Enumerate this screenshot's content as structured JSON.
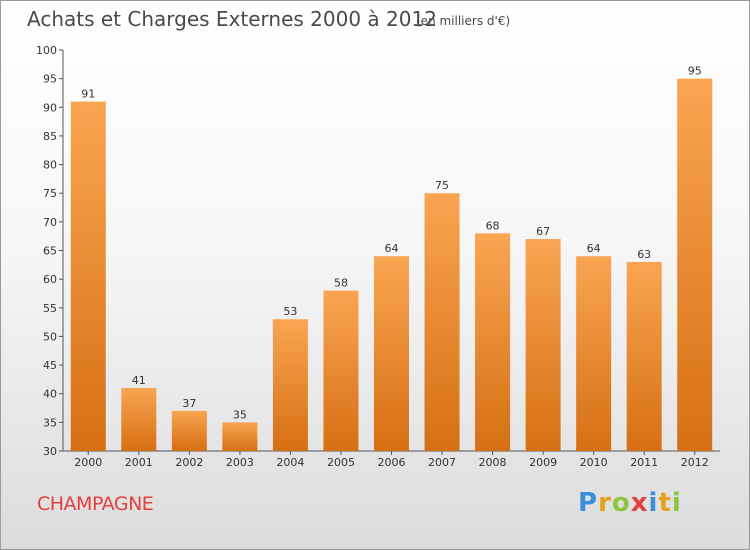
{
  "chart_data": {
    "type": "bar",
    "title": "Achats et Charges Externes 2000 à 2012",
    "subtitle": "(en milliers d'€)",
    "categories": [
      "2000",
      "2001",
      "2002",
      "2003",
      "2004",
      "2005",
      "2006",
      "2007",
      "2008",
      "2009",
      "2010",
      "2011",
      "2012"
    ],
    "values": [
      91,
      41,
      37,
      35,
      53,
      58,
      64,
      75,
      68,
      67,
      64,
      63,
      95
    ],
    "ylim": [
      30,
      100
    ],
    "yticks": [
      30,
      35,
      40,
      45,
      50,
      55,
      60,
      65,
      70,
      75,
      80,
      85,
      90,
      95,
      100
    ],
    "xlabel": "",
    "ylabel": "",
    "grid": false,
    "bar_color_top": "#f9a552",
    "bar_color_bottom": "#d66f13"
  },
  "footer": {
    "place_name": "CHAMPAGNE",
    "brand": "Proxiti",
    "brand_letter_colors": [
      "#3a8fd8",
      "#e6a01a",
      "#8cc63f",
      "#e2413f",
      "#3a8fd8",
      "#e6a01a",
      "#8cc63f"
    ]
  }
}
